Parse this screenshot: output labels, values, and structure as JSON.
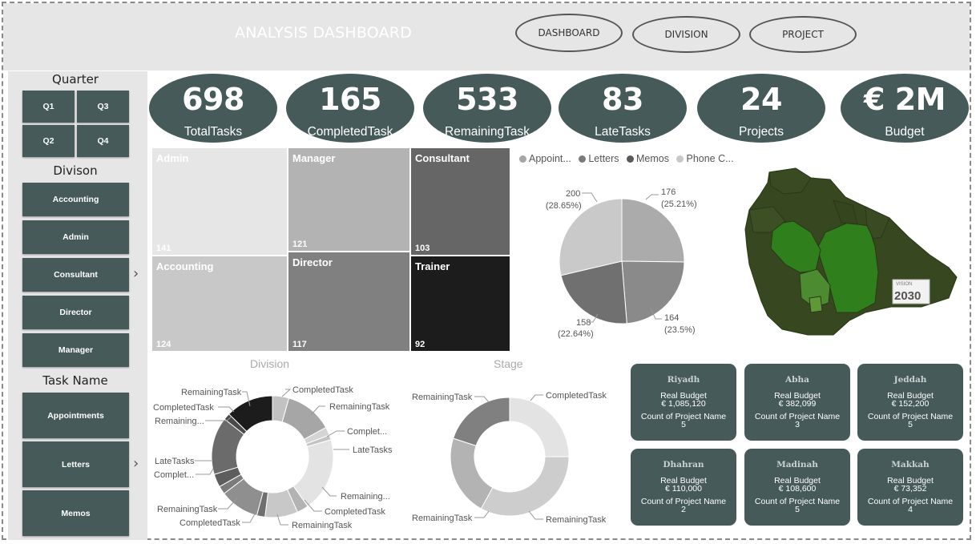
{
  "header": {
    "title": "ANALYSIS DASHBOARD",
    "nav": [
      "DASHBOARD",
      "DIVISION",
      "PROJECT"
    ]
  },
  "sidebar": {
    "quarter": {
      "heading": "Quarter",
      "items": [
        "Q1",
        "Q3",
        "Q2",
        "Q4"
      ]
    },
    "division": {
      "heading": "Divison",
      "items": [
        "Accounting",
        "Admin",
        "Consultant",
        "Director",
        "Manager"
      ]
    },
    "task": {
      "heading": "Task Name",
      "items": [
        "Appointments",
        "Letters",
        "Memos"
      ]
    }
  },
  "kpis": [
    {
      "value": "698",
      "label": "TotalTasks"
    },
    {
      "value": "165",
      "label": "CompletedTask"
    },
    {
      "value": "533",
      "label": "RemainingTask"
    },
    {
      "value": "83",
      "label": "LateTasks"
    },
    {
      "value": "24",
      "label": "Projects"
    },
    {
      "value": "€ 2M",
      "label": "Budget"
    }
  ],
  "treemap": [
    {
      "name": "Admin",
      "count": "141",
      "color": "#e6e6e6"
    },
    {
      "name": "Manager",
      "count": "121",
      "color": "#b3b3b3"
    },
    {
      "name": "Consultant",
      "count": "103",
      "color": "#666666"
    },
    {
      "name": "Accounting",
      "count": "124",
      "color": "#c8c8c8"
    },
    {
      "name": "Director",
      "count": "117",
      "color": "#808080"
    },
    {
      "name": "Trainer",
      "count": "92",
      "color": "#1c1c1c"
    }
  ],
  "pie_legend": [
    {
      "name": "Appoint...",
      "color": "#a6a6a6"
    },
    {
      "name": "Letters",
      "color": "#7a7a7a"
    },
    {
      "name": "Memos",
      "color": "#595959"
    },
    {
      "name": "Phone C...",
      "color": "#c8c8c8"
    }
  ],
  "pie_labels": [
    {
      "value": "176",
      "pct": "(25.21%)"
    },
    {
      "value": "164",
      "pct": "(23.5%)"
    },
    {
      "value": "158",
      "pct": "(22.64%)"
    },
    {
      "value": "200",
      "pct": "(28.65%)"
    }
  ],
  "chart_data": [
    {
      "type": "pie",
      "labels": [
        "176 (25.21%)",
        "164 (23.5%)",
        "158 (22.64%)",
        "200 (28.65%)"
      ],
      "values": [
        176,
        164,
        158,
        200
      ],
      "colors": [
        "#ababab",
        "#8a8a8a",
        "#707070",
        "#c9c9c9"
      ]
    },
    {
      "type": "pie",
      "title": "Division",
      "labels": [
        "CompletedTask",
        "RemainingTask",
        "Complet...",
        "LateTasks",
        "Remaining...",
        "CompletedTask",
        "RemainingTask",
        "CompletedTask",
        "RemainingTask",
        "Complet...",
        "LateTasks",
        "Remaining...",
        "CompletedTask",
        "RemainingTask"
      ],
      "values": [
        20,
        58,
        10,
        6,
        90,
        14,
        40,
        10,
        48,
        10,
        16,
        70,
        8,
        58
      ],
      "colors": [
        "#c2c2c2",
        "#a6a6a6",
        "#d4d4d4",
        "#c4c4c4",
        "#e3e3e3",
        "#b3b3b3",
        "#c8c8c8",
        "#6f6f6f",
        "#8f8f8f",
        "#7b7b7b",
        "#5d5d5d",
        "#6b6b6b",
        "#4a4a4a",
        "#1c1c1c"
      ]
    },
    {
      "type": "pie",
      "title": "Stage",
      "labels": [
        "CompletedTask",
        "RemainingTask",
        "RemainingTask",
        "RemainingTask"
      ],
      "values": [
        25,
        33,
        22,
        20
      ],
      "colors": [
        "#e3e3e3",
        "#cdcdcd",
        "#b3b3b3",
        "#808080"
      ]
    }
  ],
  "division_donut_title": "Division",
  "stage_donut_title": "Stage",
  "division_labels": [
    "RemainingTask",
    "CompletedTask",
    "Remaining...",
    "LateTasks",
    "Complet...",
    "RemainingTask",
    "CompletedTask",
    "CompletedTask",
    "RemainingTask",
    "Complet...",
    "LateTasks",
    "Remaining...",
    "CompletedTask",
    "RemainingTask"
  ],
  "stage_labels": [
    "RemainingTask",
    "CompletedTask",
    "RemainingTask",
    "RemainingTask"
  ],
  "map": {
    "logo_text_top": "VISION",
    "logo_text_main": "2030"
  },
  "cards": [
    {
      "city": "Riyadh",
      "budget_label": "Real Budget",
      "budget": "€ 1,085,120",
      "count_label": "Count of Project Name",
      "count": "5"
    },
    {
      "city": "Abha",
      "budget_label": "Real Budget",
      "budget": "€ 382,099",
      "count_label": "Count of Project Name",
      "count": "3"
    },
    {
      "city": "Jeddah",
      "budget_label": "Real Budget",
      "budget": "€ 152,200",
      "count_label": "Count of Project Name",
      "count": "5"
    },
    {
      "city": "Dhahran",
      "budget_label": "Real Budget",
      "budget": "€ 110,000",
      "count_label": "Count of Project Name",
      "count": "2"
    },
    {
      "city": "Madinah",
      "budget_label": "Real Budget",
      "budget": "€ 108,600",
      "count_label": "Count of Project Name",
      "count": "5"
    },
    {
      "city": "Makkah",
      "budget_label": "Real Budget",
      "budget": "€ 73,352",
      "count_label": "Count of Project Name",
      "count": "4"
    }
  ]
}
